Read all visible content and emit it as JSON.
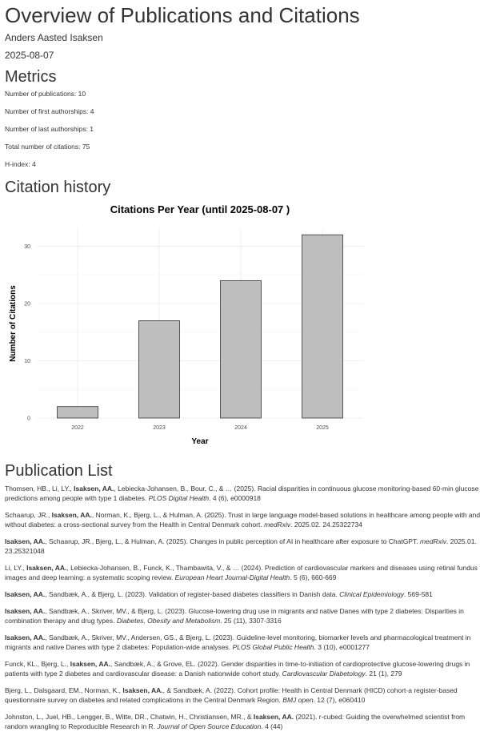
{
  "page": {
    "title": "Overview of Publications and Citations",
    "author": "Anders Aasted Isaksen",
    "date": "2025-08-07"
  },
  "metrics": {
    "heading": "Metrics",
    "items": [
      "Number of publications: 10",
      "Number of first authorships: 4",
      "Number of last authorships: 1",
      "Total number of citations: 75",
      "H-index: 4"
    ]
  },
  "citation_history": {
    "heading": "Citation history"
  },
  "chart_data": {
    "type": "bar",
    "title": "Citations Per Year (until 2025-08-07 )",
    "xlabel": "Year",
    "ylabel": "Number of Citations",
    "categories": [
      "2022",
      "2023",
      "2024",
      "2025"
    ],
    "values": [
      2,
      17,
      24,
      32
    ],
    "ylim": [
      0,
      33
    ],
    "yticks": [
      0,
      10,
      20,
      30
    ],
    "grid": true,
    "bar_color": "#bebebe",
    "bar_outline": "#333333"
  },
  "publications": {
    "heading": "Publication List",
    "items": [
      {
        "pre": "Thomsen, HB., Li, LY., ",
        "me": "Isaksen, AA.",
        "post": ", Lebiecka-Johansen, B., Bour, C., & … (2025). Racial disparities in continuous glucose monitoring-based 60-min glucose predictions among people with type 1 diabetes. ",
        "journal": "PLOS Digital Health",
        "tail": ". 4 (6), e0000918"
      },
      {
        "pre": "Schaarup, JR., ",
        "me": "Isaksen, AA.",
        "post": ", Norman, K., Bjerg, L., & Hulman, A. (2025). Trust in large language model-based solutions in healthcare among people with and without diabetes: a cross-sectional survey from the Health in Central Denmark cohort. ",
        "journal": "medRxiv",
        "tail": ". 2025.02. 24.25322734"
      },
      {
        "pre": "",
        "me": "Isaksen, AA.",
        "post": ", Schaarup, JR., Bjerg, L., & Hulman, A. (2025). Changes in public perception of AI in healthcare after exposure to ChatGPT. ",
        "journal": "medRxiv",
        "tail": ". 2025.01. 23.25321048"
      },
      {
        "pre": "Li, LY., ",
        "me": "Isaksen, AA.",
        "post": ", Lebiecka-Johansen, B., Funck, K., Thambawita, V., & … (2024). Prediction of cardiovascular markers and diseases using retinal fundus images and deep learning: a systematic scoping review. ",
        "journal": "European Heart Journal-Digital Health",
        "tail": ". 5 (6), 660-669"
      },
      {
        "pre": "",
        "me": "Isaksen, AA.",
        "post": ", Sandbæk, A., & Bjerg, L. (2023). Validation of register-based diabetes classifiers in Danish data. ",
        "journal": "Clinical Epidemiology",
        "tail": ". 569-581"
      },
      {
        "pre": "",
        "me": "Isaksen, AA.",
        "post": ", Sandbæk, A., Skriver, MV., & Bjerg, L. (2023). Glucose-lowering drug use in migrants and native Danes with type 2 diabetes: Disparities in combination therapy and drug types. ",
        "journal": "Diabetes, Obesity and Metabolism",
        "tail": ". 25 (11), 3307-3316"
      },
      {
        "pre": "",
        "me": "Isaksen, AA.",
        "post": ", Sandbæk, A., Skriver, MV., Andersen, GS., & Bjerg, L. (2023). Guideline-level monitoring, biomarker levels and pharmacological treatment in migrants and native Danes with type 2 diabetes: Population-wide analyses. ",
        "journal": "PLOS Global Public Health",
        "tail": ". 3 (10), e0001277"
      },
      {
        "pre": "Funck, KL., Bjerg, L., ",
        "me": "Isaksen, AA.",
        "post": ", Sandbæk, A., & Grove, EL. (2022). Gender disparities in time-to-initiation of cardioprotective glucose-lowering drugs in patients with type 2 diabetes and cardiovascular disease: a Danish nationwide cohort study. ",
        "journal": "Cardiovascular Diabetology",
        "tail": ". 21 (1), 279"
      },
      {
        "pre": "Bjerg, L., Dalsgaard, EM., Norman, K., ",
        "me": "Isaksen, AA.",
        "post": ", & Sandbæk, A. (2022). Cohort profile: Health in Central Denmark (HICD) cohort-a register-based questionnaire survey on diabetes and related complications in the Central Denmark Region. ",
        "journal": "BMJ open",
        "tail": ". 12 (7), e060410"
      },
      {
        "pre": "Johnston, L., Juel, HB., Lengger, B., Witte, DR., Chatwin, H., Christiansen, MR., & ",
        "me": "Isaksen, AA.",
        "post": " (2021). r-cubed: Guiding the overwhelmed scientist from random wrangling to Reproducible Research in R. ",
        "journal": "Journal of Open Source Education",
        "tail": ". 4 (44)"
      }
    ]
  }
}
